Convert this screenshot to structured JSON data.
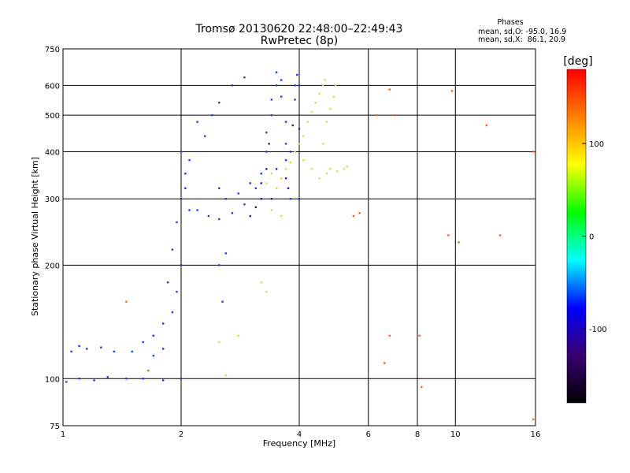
{
  "chart_data": {
    "type": "scatter",
    "title": "Tromsø 20130620 22:48:00–22:49:43",
    "subtitle": "RwPretec (8p)",
    "xlabel": "Frequency [MHz]",
    "ylabel": "Stationary phase Virtual Height [km]",
    "x_scale": "log",
    "y_scale": "log",
    "xlim": [
      1,
      16
    ],
    "ylim": [
      75,
      750
    ],
    "x_ticks": [
      1,
      2,
      4,
      6,
      8,
      10,
      16
    ],
    "x_tick_labels": [
      "1",
      "2",
      "4",
      "6",
      "8",
      "10",
      "16"
    ],
    "y_ticks": [
      75,
      100,
      200,
      300,
      400,
      500,
      600,
      750
    ],
    "y_tick_labels": [
      "75",
      "100",
      "200",
      "300",
      "400",
      "500",
      "600",
      "750"
    ],
    "grid": true,
    "phase_box": {
      "title": "Phases",
      "line_o": "mean, sd,O: -95.0, 16.9",
      "line_x": "mean, sd,X:  86.1, 20.9"
    },
    "colorbar": {
      "label": "[deg]",
      "range": [
        -180,
        180
      ],
      "ticks": [
        100,
        0,
        -100
      ],
      "tick_labels": [
        "100",
        "0",
        "-100"
      ],
      "colormap": [
        "#000000",
        "#3a0070",
        "#0000ff",
        "#00ffff",
        "#00ff00",
        "#ffff00",
        "#ff8000",
        "#ff0000"
      ]
    },
    "series": [
      {
        "description_role": "O-mode echoes",
        "color": "#1a3cff",
        "points": [
          [
            1.02,
            98
          ],
          [
            1.1,
            100
          ],
          [
            1.2,
            99
          ],
          [
            1.3,
            101
          ],
          [
            1.45,
            100
          ],
          [
            1.6,
            100
          ],
          [
            1.8,
            99
          ],
          [
            2.0,
            100
          ],
          [
            1.05,
            118
          ],
          [
            1.1,
            122
          ],
          [
            1.15,
            120
          ],
          [
            1.25,
            121
          ],
          [
            1.35,
            118
          ],
          [
            1.5,
            118
          ],
          [
            1.6,
            125
          ],
          [
            1.7,
            130
          ],
          [
            1.8,
            140
          ],
          [
            1.9,
            150
          ],
          [
            1.95,
            170
          ],
          [
            2.0,
            200
          ],
          [
            1.85,
            180
          ],
          [
            1.9,
            220
          ],
          [
            1.95,
            260
          ],
          [
            2.0,
            300
          ],
          [
            2.05,
            350
          ],
          [
            2.1,
            380
          ],
          [
            2.0,
            400
          ],
          [
            2.05,
            320
          ],
          [
            2.1,
            280
          ],
          [
            2.2,
            280
          ],
          [
            2.35,
            270
          ],
          [
            2.5,
            265
          ],
          [
            2.7,
            275
          ],
          [
            2.9,
            290
          ],
          [
            2.5,
            320
          ],
          [
            2.6,
            300
          ],
          [
            2.8,
            310
          ],
          [
            3.0,
            330
          ],
          [
            3.1,
            320
          ],
          [
            2.2,
            480
          ],
          [
            2.3,
            440
          ],
          [
            2.4,
            500
          ],
          [
            2.5,
            540
          ],
          [
            2.7,
            600
          ],
          [
            2.9,
            630
          ],
          [
            2.5,
            200
          ],
          [
            2.6,
            215
          ],
          [
            2.55,
            160
          ],
          [
            1.8,
            120
          ],
          [
            1.7,
            115
          ],
          [
            3.2,
            350
          ],
          [
            3.3,
            400
          ],
          [
            3.3,
            450
          ],
          [
            3.4,
            500
          ],
          [
            3.4,
            550
          ],
          [
            3.5,
            600
          ],
          [
            3.5,
            650
          ],
          [
            3.6,
            620
          ],
          [
            3.6,
            560
          ],
          [
            3.7,
            480
          ],
          [
            3.7,
            420
          ],
          [
            3.7,
            380
          ],
          [
            3.8,
            300
          ],
          [
            3.9,
            550
          ],
          [
            3.9,
            600
          ],
          [
            3.95,
            640
          ],
          [
            4.0,
            300
          ],
          [
            4.0,
            600
          ]
        ]
      },
      {
        "description_role": "purple echoes",
        "color": "#4a10a8",
        "points": [
          [
            3.0,
            270
          ],
          [
            3.1,
            285
          ],
          [
            3.2,
            300
          ],
          [
            3.2,
            330
          ],
          [
            3.3,
            360
          ],
          [
            3.35,
            420
          ],
          [
            3.4,
            300
          ],
          [
            3.5,
            360
          ],
          [
            3.7,
            340
          ],
          [
            3.75,
            320
          ],
          [
            3.8,
            400
          ],
          [
            3.85,
            470
          ],
          [
            4.0,
            460
          ]
        ]
      },
      {
        "description_role": "X-mode echoes",
        "color": "#d8e040",
        "points": [
          [
            3.3,
            330
          ],
          [
            3.4,
            350
          ],
          [
            3.5,
            320
          ],
          [
            3.6,
            340
          ],
          [
            3.7,
            360
          ],
          [
            3.8,
            375
          ],
          [
            3.9,
            400
          ],
          [
            4.0,
            420
          ],
          [
            4.1,
            440
          ],
          [
            4.2,
            480
          ],
          [
            4.3,
            510
          ],
          [
            4.4,
            540
          ],
          [
            4.5,
            570
          ],
          [
            4.6,
            600
          ],
          [
            4.65,
            620
          ],
          [
            4.1,
            380
          ],
          [
            4.3,
            360
          ],
          [
            4.5,
            340
          ],
          [
            4.7,
            350
          ],
          [
            4.8,
            360
          ],
          [
            5.0,
            355
          ],
          [
            5.2,
            360
          ],
          [
            5.3,
            365
          ],
          [
            4.6,
            420
          ],
          [
            4.7,
            480
          ],
          [
            4.8,
            520
          ],
          [
            4.9,
            560
          ],
          [
            4.95,
            600
          ],
          [
            3.6,
            270
          ],
          [
            3.4,
            280
          ],
          [
            3.2,
            180
          ],
          [
            3.3,
            170
          ],
          [
            2.5,
            125
          ],
          [
            2.6,
            102
          ],
          [
            2.8,
            130
          ]
        ]
      },
      {
        "description_role": "sparse outliers",
        "color": "#ff6020",
        "points": [
          [
            6.3,
            500
          ],
          [
            6.8,
            585
          ],
          [
            7.0,
            500
          ],
          [
            8.2,
            95
          ],
          [
            9.8,
            580
          ],
          [
            9.6,
            240
          ],
          [
            12.0,
            470
          ],
          [
            13.0,
            240
          ],
          [
            15.8,
            400
          ],
          [
            15.8,
            78
          ],
          [
            6.6,
            110
          ],
          [
            6.8,
            130
          ],
          [
            8.1,
            130
          ],
          [
            10.2,
            230
          ],
          [
            5.5,
            270
          ],
          [
            5.7,
            275
          ],
          [
            1.45,
            160
          ],
          [
            1.65,
            105
          ]
        ]
      }
    ]
  }
}
